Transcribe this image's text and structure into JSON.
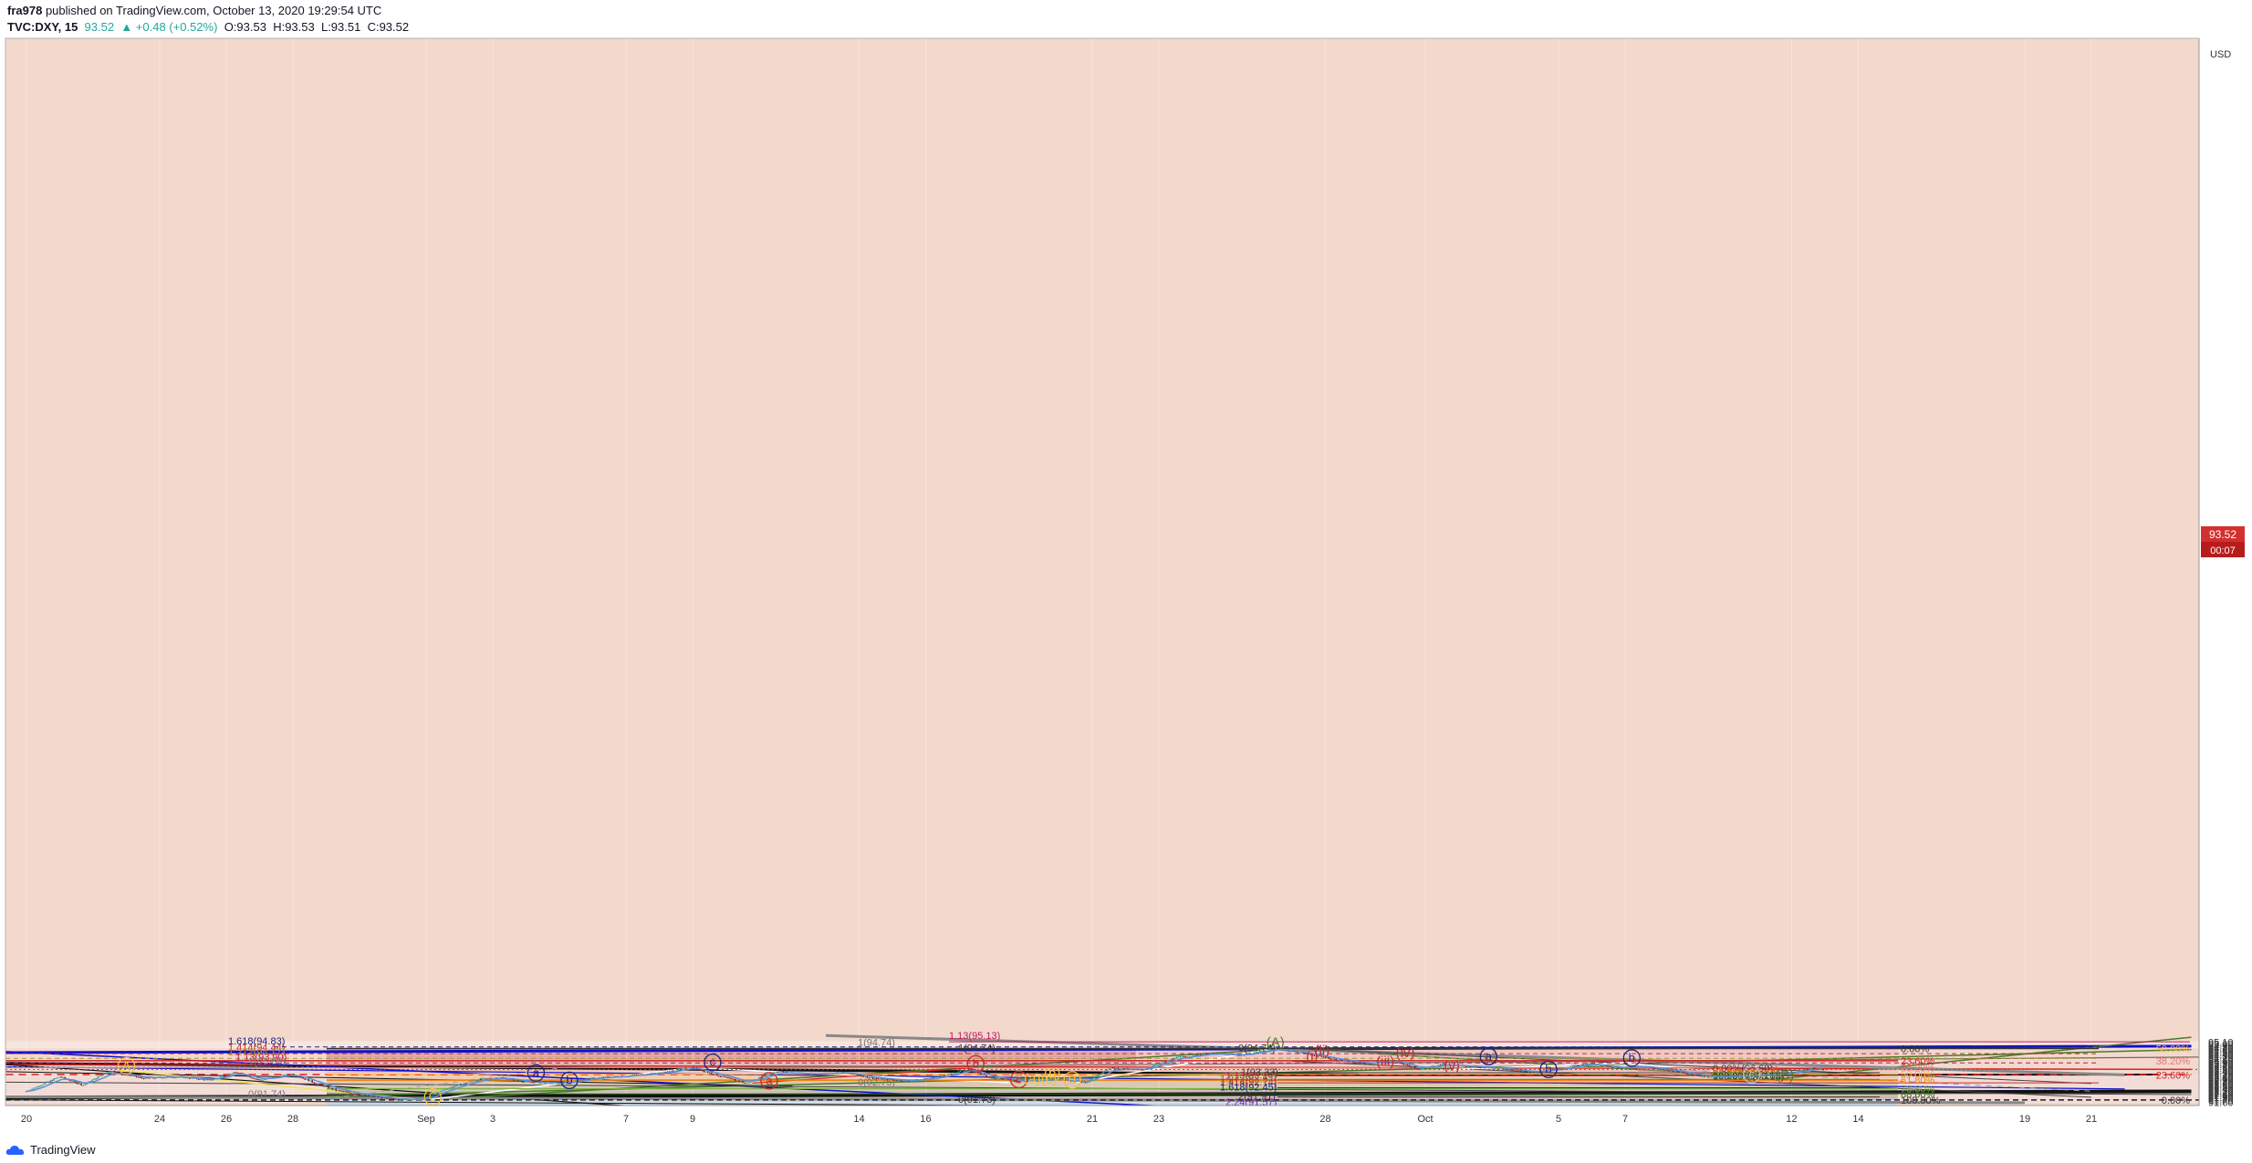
{
  "header": {
    "author": "fra978",
    "published": "published on TradingView.com, October 13, 2020 19:29:54 UTC",
    "symbol": "TVC:DXY, 15",
    "last": "93.52",
    "change": "+0.48 (+0.52%)",
    "o": "O:93.53",
    "h": "H:93.53",
    "l": "L:93.51",
    "c": "C:93.52"
  },
  "footer": {
    "brand": "TradingView"
  },
  "colors": {
    "candle_up": "#26a69a",
    "candle_dn": "#8b1a1a",
    "ema": "#5b8fd9",
    "blue_line": "#1010cc",
    "green_line": "#4a7a2a",
    "red_line": "#dd2222",
    "last_badge": "#d32f2f"
  },
  "chart_data": {
    "type": "candlestick",
    "currency_label": "USD",
    "ylim": [
      91.57,
      95.2
    ],
    "y_ticks": [
      "91.60",
      "91.70",
      "91.80",
      "91.90",
      "92.00",
      "92.10",
      "92.20",
      "92.30",
      "92.40",
      "92.50",
      "92.60",
      "92.70",
      "92.80",
      "92.90",
      "93.00",
      "93.10",
      "93.20",
      "93.30",
      "93.40",
      "93.50",
      "93.60",
      "93.70",
      "93.80",
      "93.90",
      "94.00",
      "94.10",
      "94.20",
      "94.30",
      "94.40",
      "94.50",
      "94.60",
      "94.70",
      "94.80",
      "94.90",
      "95.00",
      "95.10"
    ],
    "x_ticks": [
      {
        "label": "20",
        "day": 0
      },
      {
        "label": "24",
        "day": 4
      },
      {
        "label": "26",
        "day": 6
      },
      {
        "label": "28",
        "day": 8
      },
      {
        "label": "Sep",
        "day": 12
      },
      {
        "label": "3",
        "day": 14
      },
      {
        "label": "7",
        "day": 18
      },
      {
        "label": "9",
        "day": 20
      },
      {
        "label": "14",
        "day": 25
      },
      {
        "label": "16",
        "day": 27
      },
      {
        "label": "21",
        "day": 32
      },
      {
        "label": "23",
        "day": 34
      },
      {
        "label": "28",
        "day": 39
      },
      {
        "label": "Oct",
        "day": 42
      },
      {
        "label": "5",
        "day": 46
      },
      {
        "label": "7",
        "day": 48
      },
      {
        "label": "12",
        "day": 53
      },
      {
        "label": "14",
        "day": 55
      },
      {
        "label": "19",
        "day": 60
      },
      {
        "label": "21",
        "day": 62
      }
    ],
    "last_price": "93.52",
    "countdown": "00:07",
    "price_path": [
      [
        0,
        92.25
      ],
      [
        1,
        93.1
      ],
      [
        1.7,
        92.6
      ],
      [
        2.5,
        93.45
      ],
      [
        3.5,
        93.0
      ],
      [
        4.5,
        93.1
      ],
      [
        5.5,
        92.9
      ],
      [
        6.3,
        93.35
      ],
      [
        7,
        92.9
      ],
      [
        8,
        93.25
      ],
      [
        8.7,
        92.7
      ],
      [
        9.3,
        92.3
      ],
      [
        10.2,
        92.0
      ],
      [
        11.0,
        91.8
      ],
      [
        11.9,
        91.75
      ],
      [
        12.6,
        92.4
      ],
      [
        13.5,
        92.9
      ],
      [
        14.2,
        93.05
      ],
      [
        15.0,
        92.8
      ],
      [
        16.0,
        92.7
      ],
      [
        17.0,
        93.0
      ],
      [
        18.0,
        93.15
      ],
      [
        19.0,
        93.3
      ],
      [
        20.0,
        93.65
      ],
      [
        20.7,
        93.2
      ],
      [
        21.6,
        92.72
      ],
      [
        22.5,
        93.4
      ],
      [
        23.5,
        93.25
      ],
      [
        24.5,
        93.35
      ],
      [
        25.5,
        93.0
      ],
      [
        26.5,
        92.85
      ],
      [
        27.5,
        93.1
      ],
      [
        28.3,
        93.55
      ],
      [
        29.0,
        93.0
      ],
      [
        30.0,
        92.85
      ],
      [
        31.0,
        92.95
      ],
      [
        31.8,
        92.77
      ],
      [
        32.5,
        93.6
      ],
      [
        33.5,
        93.5
      ],
      [
        34.5,
        94.2
      ],
      [
        35.5,
        94.45
      ],
      [
        36.5,
        94.35
      ],
      [
        37.5,
        94.74
      ],
      [
        38.4,
        94.45
      ],
      [
        39.3,
        94.1
      ],
      [
        40.3,
        93.85
      ],
      [
        41.0,
        94.05
      ],
      [
        41.8,
        93.55
      ],
      [
        42.5,
        93.8
      ],
      [
        43.4,
        93.7
      ],
      [
        44.3,
        93.6
      ],
      [
        45.2,
        93.35
      ],
      [
        46.2,
        93.6
      ],
      [
        46.9,
        93.88
      ],
      [
        47.8,
        93.6
      ],
      [
        48.6,
        93.7
      ],
      [
        49.5,
        93.4
      ],
      [
        50.5,
        93.08
      ],
      [
        51.5,
        93.15
      ],
      [
        52.5,
        93.2
      ],
      [
        53.0,
        93.3
      ],
      [
        53.6,
        93.6
      ],
      [
        54.0,
        93.52
      ]
    ],
    "fib_left": [
      {
        "label": "1.13(95.13)",
        "price": 95.13,
        "color": "#c2185b"
      },
      {
        "label": "1.618(94.83)",
        "price": 94.83,
        "color": "#1a237e"
      },
      {
        "label": "1.414(94.44)",
        "price": 94.44,
        "color": "#c62828"
      },
      {
        "label": "1.272(94.17)",
        "price": 94.17,
        "color": "#9e9d24"
      },
      {
        "label": "1.13(93.90)",
        "price": 93.9,
        "color": "#c2185b"
      },
      {
        "label": "1(93.65)",
        "price": 93.65,
        "color": "#757575"
      },
      {
        "label": "0(91.74)",
        "price": 91.74,
        "color": "#757575"
      },
      {
        "label": "1(94.74)",
        "price": 94.74,
        "color": "#757575"
      }
    ],
    "fib_mid": [
      {
        "label": "1(94.74)",
        "price": 94.74,
        "color": "#333333"
      },
      {
        "label": "0(94.74)",
        "price": 94.74,
        "color": "#333333"
      },
      {
        "label": "1(93.33)",
        "price": 93.33,
        "color": "#333333"
      },
      {
        "label": "1.13(93.14)",
        "price": 93.14,
        "color": "#c2185b"
      },
      {
        "label": "1.272(92.94)",
        "price": 92.94,
        "color": "#558b2f"
      },
      {
        "label": "1.414(92.74)",
        "price": 92.74,
        "color": "#c62828"
      },
      {
        "label": "0(92.75)",
        "price": 92.75,
        "color": "#757575"
      },
      {
        "label": "1.618(92.45)",
        "price": 92.45,
        "color": "#1a237e"
      },
      {
        "label": "2(91.91)",
        "price": 91.91,
        "color": "#333333"
      },
      {
        "label": "0(91.73)",
        "price": 91.73,
        "color": "#333333"
      },
      {
        "label": "2.24(91.57)",
        "price": 91.57,
        "color": "#7b1fa2"
      }
    ],
    "retrace_big": [
      {
        "label": "0.00%",
        "price": 94.74,
        "color": "#333333"
      },
      {
        "label": "23.60%",
        "price": 94.03,
        "color": "#c62828"
      },
      {
        "label": "38.20%",
        "price": 93.62,
        "color": "#e57373"
      },
      {
        "label": "50.00%",
        "price": 93.24,
        "color": "#ffb74d"
      },
      {
        "label": "61.80%",
        "price": 92.9,
        "color": "#f57c00"
      },
      {
        "label": "78.60%",
        "price": 92.4,
        "color": "#7cb342"
      },
      {
        "label": "88.60%",
        "price": 92.09,
        "color": "#33691e"
      },
      {
        "label": "100.00%",
        "price": 91.74,
        "color": "#333333"
      }
    ],
    "retrace_right": [
      {
        "label": "50.00%",
        "price": 94.74,
        "color": "#ffb74d"
      },
      {
        "label": "38.20%",
        "price": 94.03,
        "color": "#e57373"
      },
      {
        "label": "23.60%",
        "price": 93.2,
        "color": "#c62828"
      },
      {
        "label": "0.00%",
        "price": 91.74,
        "color": "#333333"
      }
    ],
    "retrace_small": [
      {
        "label": "0.00%(93.60)",
        "price": 93.6,
        "color": "#333333"
      },
      {
        "label": "23.60%(93.49)",
        "price": 93.49,
        "color": "#c62828"
      },
      {
        "label": "38.20%(93.42)",
        "price": 93.42,
        "color": "#e57373"
      },
      {
        "label": "61.80%(93.31)",
        "price": 93.31,
        "color": "#f57c00"
      },
      {
        "label": "78.60%(93.23)",
        "price": 93.23,
        "color": "#7cb342"
      },
      {
        "label": "88.60%(93.18)",
        "price": 93.18,
        "color": "#33691e"
      },
      {
        "label": "100.00%(93.13)",
        "price": 93.13,
        "color": "#333333"
      }
    ],
    "wave_labels": [
      {
        "text": "(A)",
        "day": 37.5,
        "price": 94.84,
        "color": "#4a7a2a"
      },
      {
        "text": "(B)",
        "day": 52.8,
        "price": 92.93,
        "color": "#4a7a2a"
      },
      {
        "text": "(i)",
        "day": 38.6,
        "price": 94.05,
        "color": "#c62828"
      },
      {
        "text": "(ii)",
        "day": 38.9,
        "price": 94.36,
        "color": "#c62828"
      },
      {
        "text": "(iii)",
        "day": 40.8,
        "price": 93.72,
        "color": "#c62828"
      },
      {
        "text": "(iv)",
        "day": 41.4,
        "price": 94.24,
        "color": "#c62828"
      },
      {
        "text": "(v)",
        "day": 42.8,
        "price": 93.45,
        "color": "#c62828"
      },
      {
        "text": "a",
        "day": 43.9,
        "price": 94.06,
        "color": "#1a237e"
      },
      {
        "text": "b",
        "day": 45.7,
        "price": 93.31,
        "color": "#1a237e"
      },
      {
        "text": "c",
        "day": 51.8,
        "price": 93.01,
        "color": "#bdbdbd"
      },
      {
        "text": "a",
        "day": 15.3,
        "price": 93.1,
        "color": "#1a237e"
      },
      {
        "text": "b",
        "day": 16.3,
        "price": 92.67,
        "color": "#1a237e"
      },
      {
        "text": "c",
        "day": 20.6,
        "price": 93.72,
        "color": "#1a237e"
      },
      {
        "text": "a",
        "day": 22.3,
        "price": 92.64,
        "color": "#c62828"
      },
      {
        "text": "b",
        "day": 28.5,
        "price": 93.63,
        "color": "#c62828"
      },
      {
        "text": "c",
        "day": 29.8,
        "price": 92.72,
        "color": "#c62828"
      },
      {
        "text": "B",
        "day": 31.4,
        "price": 92.69,
        "color": "#fbc02d"
      },
      {
        "text": "(c)",
        "day": 30.7,
        "price": 92.69,
        "color": "#fbc02d"
      },
      {
        "text": "(a)",
        "day": 30.2,
        "price": 92.72,
        "color": "#fbc02d"
      },
      {
        "text": "(b)",
        "day": 30.8,
        "price": 93.04,
        "color": "#fbc02d"
      },
      {
        "text": "A",
        "day": 3.0,
        "price": 93.52,
        "color": "#fbc02d"
      },
      {
        "text": "C",
        "day": 12.2,
        "price": 91.7,
        "color": "#fbc02d"
      },
      {
        "text": "b",
        "day": 48.2,
        "price": 93.97,
        "color": "#1a237e"
      }
    ]
  }
}
